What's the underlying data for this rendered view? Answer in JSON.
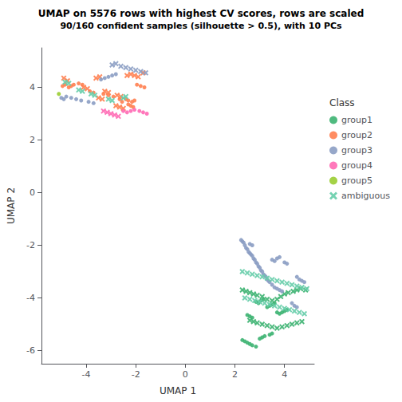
{
  "chart_data": {
    "type": "scatter",
    "title": "UMAP on 5576 rows with highest CV scores, rows are scaled",
    "subtitle": "90/160 confident samples (silhouette > 0.5), with 10 PCs",
    "x_label": "UMAP 1",
    "y_label": "UMAP 2",
    "legend_title": "Class",
    "xlim": [
      -5.8,
      5.2
    ],
    "ylim": [
      -6.5,
      5.5
    ],
    "xticks": [
      -4,
      -2,
      0,
      2,
      4
    ],
    "yticks": [
      -6,
      -4,
      -2,
      0,
      2,
      4
    ],
    "grid": false,
    "legend": "right",
    "series": [
      {
        "name": "group1",
        "color": "#3CB371",
        "marker": "circle",
        "values": [
          [
            2.3,
            -5.6
          ],
          [
            2.4,
            -5.65
          ],
          [
            2.5,
            -5.7
          ],
          [
            2.6,
            -5.75
          ],
          [
            2.7,
            -5.8
          ],
          [
            2.85,
            -5.85
          ],
          [
            3.0,
            -5.55
          ],
          [
            3.1,
            -5.5
          ],
          [
            3.2,
            -5.45
          ],
          [
            3.4,
            -5.4
          ],
          [
            3.5,
            -5.35
          ],
          [
            2.85,
            -4.15
          ],
          [
            2.95,
            -4.2
          ],
          [
            3.05,
            -4.1
          ],
          [
            3.15,
            -4.05
          ],
          [
            3.3,
            -4.35
          ],
          [
            3.4,
            -4.3
          ],
          [
            3.5,
            -4.25
          ],
          [
            3.6,
            -4.2
          ],
          [
            3.7,
            -4.55
          ],
          [
            3.8,
            -4.6
          ],
          [
            3.9,
            -4.55
          ],
          [
            4.0,
            -4.5
          ],
          [
            4.1,
            -4.45
          ],
          [
            2.5,
            -4.65
          ],
          [
            2.6,
            -4.7
          ],
          [
            2.7,
            -4.75
          ]
        ]
      },
      {
        "name": "group1",
        "color": "#3CB371",
        "marker": "cross",
        "values": [
          [
            2.3,
            -3.7
          ],
          [
            2.45,
            -3.75
          ],
          [
            2.6,
            -3.8
          ],
          [
            2.75,
            -3.85
          ],
          [
            2.9,
            -3.9
          ],
          [
            3.1,
            -3.95
          ],
          [
            3.3,
            -4.05
          ],
          [
            3.5,
            -4.1
          ],
          [
            3.7,
            -4.05
          ],
          [
            3.85,
            -3.95
          ],
          [
            4.0,
            -3.85
          ],
          [
            4.15,
            -3.8
          ],
          [
            4.35,
            -3.75
          ],
          [
            4.5,
            -3.7
          ],
          [
            4.65,
            -3.65
          ],
          [
            4.85,
            -3.7
          ],
          [
            2.6,
            -4.85
          ],
          [
            2.75,
            -4.9
          ],
          [
            2.9,
            -4.95
          ],
          [
            3.1,
            -5.0
          ],
          [
            3.3,
            -5.05
          ],
          [
            3.5,
            -5.1
          ],
          [
            3.7,
            -5.15
          ],
          [
            3.9,
            -5.1
          ],
          [
            4.1,
            -5.05
          ],
          [
            4.3,
            -5.0
          ],
          [
            4.5,
            -4.95
          ],
          [
            4.7,
            -4.9
          ]
        ]
      },
      {
        "name": "group2",
        "color": "#FF7F50",
        "marker": "circle",
        "values": [
          [
            -4.95,
            4.05
          ],
          [
            -4.85,
            4.1
          ],
          [
            -4.7,
            4.0
          ],
          [
            -4.6,
            4.05
          ],
          [
            -4.5,
            4.1
          ],
          [
            -4.3,
            4.15
          ],
          [
            -4.15,
            4.1
          ],
          [
            -3.85,
            3.85
          ],
          [
            -3.7,
            3.8
          ],
          [
            -3.3,
            3.75
          ],
          [
            -3.1,
            3.7
          ],
          [
            -2.9,
            3.65
          ],
          [
            -2.65,
            3.55
          ],
          [
            -2.55,
            3.45
          ],
          [
            -2.4,
            3.55
          ],
          [
            -2.3,
            3.5
          ],
          [
            -2.15,
            3.45
          ],
          [
            -2.05,
            3.5
          ],
          [
            -2.3,
            3.35
          ],
          [
            -2.2,
            3.3
          ],
          [
            -2.1,
            3.25
          ],
          [
            -1.95,
            4.1
          ],
          [
            -1.8,
            4.05
          ],
          [
            -1.65,
            4.0
          ]
        ]
      },
      {
        "name": "group2",
        "color": "#FF7F50",
        "marker": "cross",
        "values": [
          [
            -4.9,
            4.35
          ],
          [
            -4.75,
            4.25
          ],
          [
            -4.1,
            4.0
          ],
          [
            -3.95,
            3.95
          ],
          [
            -3.6,
            4.35
          ],
          [
            -3.45,
            4.4
          ],
          [
            -3.25,
            3.85
          ],
          [
            -3.1,
            3.8
          ],
          [
            -2.75,
            3.7
          ],
          [
            -2.6,
            3.65
          ],
          [
            -2.35,
            4.45
          ],
          [
            -2.2,
            4.5
          ],
          [
            -2.05,
            4.45
          ],
          [
            -1.9,
            4.4
          ],
          [
            -1.7,
            4.55
          ],
          [
            -2.8,
            3.3
          ],
          [
            -2.65,
            3.25
          ],
          [
            -2.5,
            3.2
          ],
          [
            -3.5,
            3.6
          ],
          [
            -3.35,
            3.55
          ]
        ]
      },
      {
        "name": "group3",
        "color": "#8B9DC3",
        "marker": "circle",
        "values": [
          [
            -4.8,
            3.65
          ],
          [
            -4.6,
            3.6
          ],
          [
            -4.4,
            3.55
          ],
          [
            -4.2,
            3.5
          ],
          [
            -3.9,
            3.45
          ],
          [
            -3.7,
            3.4
          ],
          [
            -3.4,
            4.3
          ],
          [
            -3.25,
            4.35
          ],
          [
            -3.1,
            4.4
          ],
          [
            -2.95,
            4.45
          ],
          [
            -2.8,
            4.5
          ],
          [
            -4.9,
            3.55
          ],
          [
            -5.0,
            3.6
          ]
        ]
      },
      {
        "name": "group3",
        "color": "#8B9DC3",
        "marker": "cross",
        "values": [
          [
            -2.95,
            4.85
          ],
          [
            -2.8,
            4.9
          ],
          [
            -2.6,
            4.8
          ],
          [
            -2.4,
            4.75
          ],
          [
            -2.2,
            4.7
          ],
          [
            -2.0,
            4.65
          ],
          [
            -1.8,
            4.6
          ],
          [
            -1.6,
            4.55
          ]
        ]
      },
      {
        "name": "group3",
        "color": "#8B9DC3",
        "marker": "circle",
        "values": [
          [
            2.25,
            -1.8
          ],
          [
            2.3,
            -1.85
          ],
          [
            2.35,
            -1.9
          ],
          [
            2.4,
            -2.0
          ],
          [
            2.45,
            -2.1
          ],
          [
            2.5,
            -2.15
          ],
          [
            2.55,
            -2.25
          ],
          [
            2.6,
            -2.3
          ],
          [
            2.65,
            -2.35
          ],
          [
            2.7,
            -2.4
          ],
          [
            2.75,
            -2.5
          ],
          [
            2.8,
            -2.55
          ],
          [
            2.85,
            -2.65
          ],
          [
            2.9,
            -2.7
          ],
          [
            2.95,
            -2.8
          ],
          [
            3.0,
            -2.85
          ],
          [
            3.05,
            -2.95
          ],
          [
            3.1,
            -3.0
          ],
          [
            3.15,
            -3.1
          ],
          [
            3.2,
            -3.15
          ],
          [
            3.25,
            -3.2
          ],
          [
            3.3,
            -3.3
          ],
          [
            3.35,
            -3.35
          ],
          [
            3.4,
            -3.4
          ],
          [
            3.5,
            -3.5
          ],
          [
            3.6,
            -3.6
          ],
          [
            3.7,
            -3.65
          ],
          [
            3.8,
            -3.7
          ],
          [
            3.9,
            -3.75
          ],
          [
            3.5,
            -2.55
          ],
          [
            3.6,
            -2.6
          ],
          [
            3.7,
            -2.5
          ],
          [
            3.8,
            -2.45
          ],
          [
            4.0,
            -2.65
          ],
          [
            4.1,
            -2.7
          ],
          [
            4.5,
            -3.2
          ],
          [
            4.6,
            -3.3
          ],
          [
            4.7,
            -3.35
          ],
          [
            4.8,
            -3.4
          ],
          [
            4.3,
            -4.2
          ],
          [
            4.4,
            -4.3
          ],
          [
            4.5,
            -4.35
          ],
          [
            2.6,
            -1.95
          ],
          [
            2.7,
            -2.0
          ]
        ]
      },
      {
        "name": "group4",
        "color": "#FF69B4",
        "marker": "circle",
        "values": [
          [
            -2.5,
            3.1
          ],
          [
            -2.35,
            3.05
          ],
          [
            -2.2,
            3.1
          ],
          [
            -2.05,
            3.15
          ],
          [
            -1.85,
            3.1
          ],
          [
            -1.7,
            3.05
          ],
          [
            -1.55,
            3.0
          ]
        ]
      },
      {
        "name": "group4",
        "color": "#FF69B4",
        "marker": "cross",
        "values": [
          [
            -3.3,
            3.1
          ],
          [
            -3.15,
            3.05
          ],
          [
            -3.0,
            3.0
          ],
          [
            -2.85,
            2.95
          ],
          [
            -2.7,
            2.9
          ]
        ]
      },
      {
        "name": "group5",
        "color": "#9ACD32",
        "marker": "circle",
        "values": [
          [
            -5.1,
            3.75
          ]
        ]
      },
      {
        "name": "ambiguous",
        "color": "#66CDAA",
        "marker": "cross",
        "values": [
          [
            -4.85,
            4.2
          ],
          [
            -4.7,
            4.15
          ],
          [
            -4.3,
            3.9
          ],
          [
            -4.15,
            3.85
          ],
          [
            -3.8,
            3.75
          ],
          [
            -3.65,
            3.7
          ],
          [
            -3.1,
            3.55
          ],
          [
            -2.95,
            3.5
          ],
          [
            -2.5,
            3.6
          ],
          [
            -2.4,
            3.65
          ]
        ]
      },
      {
        "name": "ambiguous",
        "color": "#66CDAA",
        "marker": "cross",
        "values": [
          [
            2.3,
            -3.0
          ],
          [
            2.5,
            -3.05
          ],
          [
            2.7,
            -3.1
          ],
          [
            2.9,
            -3.15
          ],
          [
            3.1,
            -3.2
          ],
          [
            3.3,
            -3.25
          ],
          [
            3.5,
            -3.3
          ],
          [
            3.7,
            -3.35
          ],
          [
            3.9,
            -3.4
          ],
          [
            4.1,
            -3.45
          ],
          [
            4.3,
            -3.5
          ],
          [
            4.5,
            -3.55
          ],
          [
            4.7,
            -3.6
          ],
          [
            4.9,
            -3.65
          ],
          [
            2.4,
            -4.0
          ],
          [
            2.6,
            -4.05
          ],
          [
            2.8,
            -4.1
          ],
          [
            3.0,
            -4.15
          ],
          [
            3.2,
            -4.2
          ],
          [
            3.4,
            -4.25
          ],
          [
            3.6,
            -4.3
          ],
          [
            3.8,
            -4.35
          ],
          [
            4.0,
            -4.4
          ],
          [
            4.2,
            -4.45
          ],
          [
            4.4,
            -4.5
          ],
          [
            4.6,
            -4.55
          ],
          [
            4.8,
            -4.6
          ]
        ]
      }
    ]
  }
}
